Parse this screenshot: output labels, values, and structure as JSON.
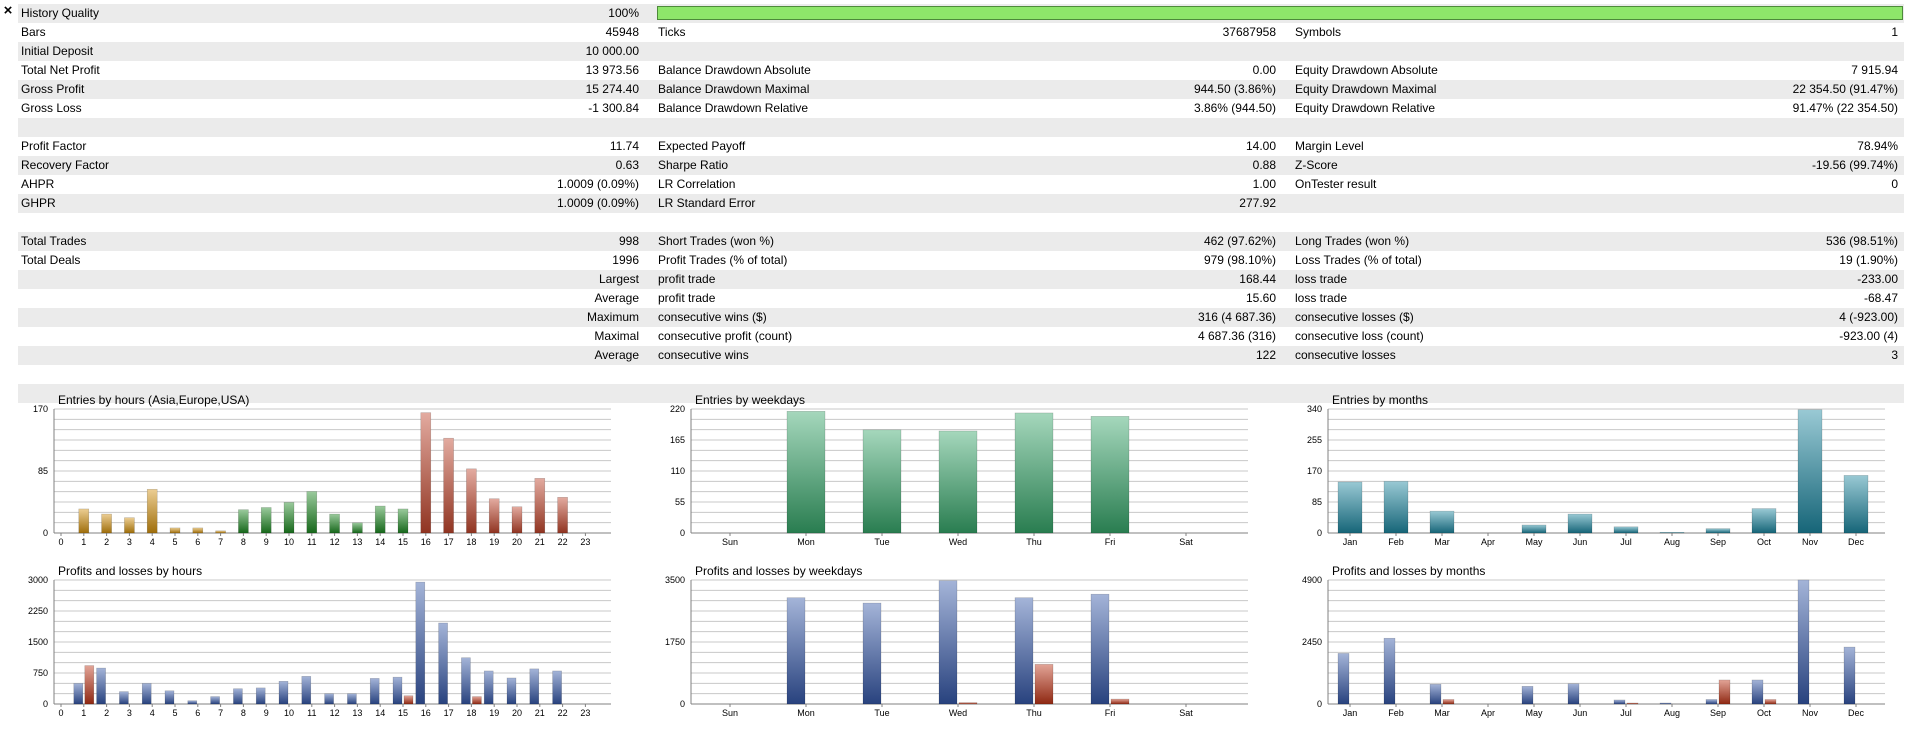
{
  "close_label": "×",
  "stats": [
    {
      "shade": true,
      "l1": "History Quality",
      "v1": "100%",
      "bar": 100
    },
    {
      "shade": false,
      "l1": "Bars",
      "v1": "45948",
      "l2": "Ticks",
      "v2": "37687958",
      "l3": "Symbols",
      "v3": "1"
    },
    {
      "shade": true,
      "l1": "Initial Deposit",
      "v1": "10 000.00"
    },
    {
      "shade": false,
      "l1": "Total Net Profit",
      "v1": "13 973.56",
      "l2": "Balance Drawdown Absolute",
      "v2": "0.00",
      "l3": "Equity Drawdown Absolute",
      "v3": "7 915.94"
    },
    {
      "shade": true,
      "l1": "Gross Profit",
      "v1": "15 274.40",
      "l2": "Balance Drawdown Maximal",
      "v2": "944.50 (3.86%)",
      "l3": "Equity Drawdown Maximal",
      "v3": "22 354.50 (91.47%)"
    },
    {
      "shade": false,
      "l1": "Gross Loss",
      "v1": "-1 300.84",
      "l2": "Balance Drawdown Relative",
      "v2": "3.86% (944.50)",
      "l3": "Equity Drawdown Relative",
      "v3": "91.47% (22 354.50)"
    },
    {
      "shade": true
    },
    {
      "shade": false,
      "l1": "Profit Factor",
      "v1": "11.74",
      "l2": "Expected Payoff",
      "v2": "14.00",
      "l3": "Margin Level",
      "v3": "78.94%"
    },
    {
      "shade": true,
      "l1": "Recovery Factor",
      "v1": "0.63",
      "l2": "Sharpe Ratio",
      "v2": "0.88",
      "l3": "Z-Score",
      "v3": "-19.56 (99.74%)"
    },
    {
      "shade": false,
      "l1": "AHPR",
      "v1": "1.0009 (0.09%)",
      "l2": "LR Correlation",
      "v2": "1.00",
      "l3": "OnTester result",
      "v3": "0"
    },
    {
      "shade": true,
      "l1": "GHPR",
      "v1": "1.0009 (0.09%)",
      "l2": "LR Standard Error",
      "v2": "277.92"
    },
    {
      "shade": false
    },
    {
      "shade": true,
      "l1": "Total Trades",
      "v1": "998",
      "l2": "Short Trades (won %)",
      "v2": "462 (97.62%)",
      "l3": "Long Trades (won %)",
      "v3": "536 (98.51%)"
    },
    {
      "shade": false,
      "l1": "Total Deals",
      "v1": "1996",
      "l2": "Profit Trades (% of total)",
      "v2": "979 (98.10%)",
      "l3": "Loss Trades (% of total)",
      "v3": "19 (1.90%)"
    },
    {
      "shade": true,
      "v1": "Largest",
      "l2": "profit trade",
      "v2": "168.44",
      "l3": "loss trade",
      "v3": "-233.00"
    },
    {
      "shade": false,
      "v1": "Average",
      "l2": "profit trade",
      "v2": "15.60",
      "l3": "loss trade",
      "v3": "-68.47"
    },
    {
      "shade": true,
      "v1": "Maximum",
      "l2": "consecutive wins ($)",
      "v2": "316 (4 687.36)",
      "l3": "consecutive losses ($)",
      "v3": "4 (-923.00)"
    },
    {
      "shade": false,
      "v1": "Maximal",
      "l2": "consecutive profit (count)",
      "v2": "4 687.36 (316)",
      "l3": "consecutive loss (count)",
      "v3": "-923.00 (4)"
    },
    {
      "shade": true,
      "v1": "Average",
      "l2": "consecutive wins",
      "v2": "122",
      "l3": "consecutive losses",
      "v3": "3"
    },
    {
      "shade": false
    },
    {
      "shade": true
    }
  ],
  "colors": {
    "asia": "#d4920f",
    "europe": "#1f8a24",
    "usa": "#c0452c",
    "weekday_green": "#37a66a",
    "teal": "#1d86a0",
    "profit_blue": "#3558a8",
    "loss_red": "#bf3518",
    "grid": "#c8c8c8"
  },
  "chart_data": [
    {
      "id": "entries-hours",
      "type": "bar",
      "title": "Entries by hours (Asia,Europe,USA)",
      "categories": [
        "0",
        "1",
        "2",
        "3",
        "4",
        "5",
        "6",
        "7",
        "8",
        "9",
        "10",
        "11",
        "12",
        "13",
        "14",
        "15",
        "16",
        "17",
        "18",
        "19",
        "20",
        "21",
        "22",
        "23"
      ],
      "yticks": [
        "0",
        "85",
        "170"
      ],
      "ylim": [
        0,
        170
      ],
      "series": [
        {
          "values": [
            0,
            33,
            26,
            21,
            60,
            7,
            7,
            3,
            32,
            35,
            42,
            57,
            26,
            14,
            37,
            33,
            165,
            130,
            88,
            47,
            36,
            75,
            49,
            0
          ],
          "colors_by_index": [
            "asia",
            "asia",
            "asia",
            "asia",
            "asia",
            "asia",
            "asia",
            "asia",
            "europe",
            "europe",
            "europe",
            "europe",
            "europe",
            "europe",
            "europe",
            "europe",
            "usa",
            "usa",
            "usa",
            "usa",
            "usa",
            "usa",
            "usa",
            "usa"
          ]
        }
      ]
    },
    {
      "id": "entries-weekdays",
      "type": "bar",
      "title": "Entries by weekdays",
      "categories": [
        "Sun",
        "Mon",
        "Tue",
        "Wed",
        "Thu",
        "Fri",
        "Sat"
      ],
      "yticks": [
        "0",
        "55",
        "110",
        "165",
        "220"
      ],
      "ylim": [
        0,
        220
      ],
      "series": [
        {
          "values": [
            0,
            216,
            183,
            181,
            213,
            207,
            0
          ],
          "color": "weekday_green"
        }
      ]
    },
    {
      "id": "entries-months",
      "type": "bar",
      "title": "Entries by months",
      "categories": [
        "Jan",
        "Feb",
        "Mar",
        "Apr",
        "May",
        "Jun",
        "Jul",
        "Aug",
        "Sep",
        "Oct",
        "Nov",
        "Dec"
      ],
      "yticks": [
        "0",
        "85",
        "170",
        "255",
        "340"
      ],
      "ylim": [
        0,
        340
      ],
      "series": [
        {
          "values": [
            140,
            142,
            60,
            0,
            22,
            52,
            17,
            2,
            12,
            67,
            338,
            158
          ],
          "color": "teal"
        }
      ]
    },
    {
      "id": "pl-hours",
      "type": "bar",
      "title": "Profits and losses by hours",
      "categories": [
        "0",
        "1",
        "2",
        "3",
        "4",
        "5",
        "6",
        "7",
        "8",
        "9",
        "10",
        "11",
        "12",
        "13",
        "14",
        "15",
        "16",
        "17",
        "18",
        "19",
        "20",
        "21",
        "22",
        "23"
      ],
      "yticks": [
        "0",
        "750",
        "1500",
        "2250",
        "3000"
      ],
      "ylim": [
        0,
        3000
      ],
      "series": [
        {
          "name": "profit",
          "color": "profit_blue",
          "values": [
            0,
            500,
            870,
            300,
            500,
            320,
            80,
            180,
            370,
            390,
            550,
            670,
            250,
            250,
            620,
            650,
            2950,
            1960,
            1120,
            800,
            630,
            850,
            800,
            0
          ]
        },
        {
          "name": "loss",
          "color": "loss_red",
          "values": [
            0,
            930,
            0,
            0,
            0,
            0,
            0,
            0,
            0,
            0,
            0,
            0,
            0,
            0,
            0,
            200,
            0,
            0,
            180,
            0,
            0,
            0,
            0,
            0
          ]
        }
      ]
    },
    {
      "id": "pl-weekdays",
      "type": "bar",
      "title": "Profits and losses by weekdays",
      "categories": [
        "Sun",
        "Mon",
        "Tue",
        "Wed",
        "Thu",
        "Fri",
        "Sat"
      ],
      "yticks": [
        "0",
        "1750",
        "3500"
      ],
      "ylim": [
        0,
        3500
      ],
      "series": [
        {
          "name": "profit",
          "color": "profit_blue",
          "values": [
            0,
            3000,
            2850,
            3480,
            3000,
            3100,
            0
          ]
        },
        {
          "name": "loss",
          "color": "loss_red",
          "values": [
            0,
            0,
            0,
            40,
            1120,
            140,
            0
          ]
        }
      ]
    },
    {
      "id": "pl-months",
      "type": "bar",
      "title": "Profits and losses by months",
      "categories": [
        "Jan",
        "Feb",
        "Mar",
        "Apr",
        "May",
        "Jun",
        "Jul",
        "Aug",
        "Sep",
        "Oct",
        "Nov",
        "Dec"
      ],
      "yticks": [
        "0",
        "2450",
        "4900"
      ],
      "ylim": [
        0,
        4900
      ],
      "series": [
        {
          "name": "profit",
          "color": "profit_blue",
          "values": [
            2000,
            2600,
            780,
            0,
            700,
            800,
            160,
            40,
            180,
            950,
            4900,
            2250
          ]
        },
        {
          "name": "loss",
          "color": "loss_red",
          "values": [
            0,
            0,
            180,
            0,
            0,
            0,
            40,
            0,
            950,
            180,
            0,
            0
          ]
        }
      ]
    }
  ]
}
